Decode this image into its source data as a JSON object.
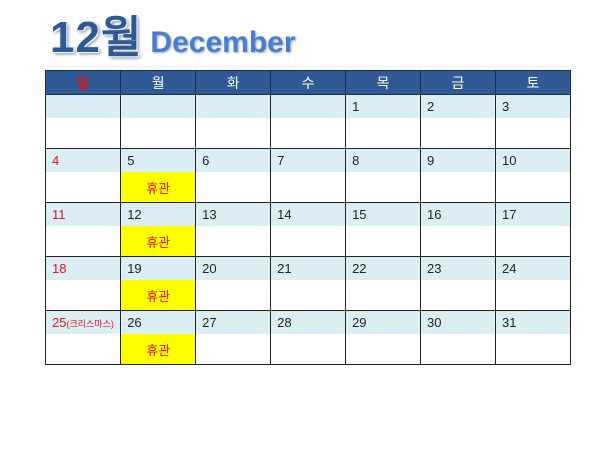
{
  "title": {
    "month": "12월",
    "english": "December"
  },
  "weekdays": [
    "일",
    "월",
    "화",
    "수",
    "목",
    "금",
    "토"
  ],
  "weeks": [
    [
      "",
      "",
      "",
      "",
      "1",
      "2",
      "3"
    ],
    [
      "4",
      "5",
      "6",
      "7",
      "8",
      "9",
      "10"
    ],
    [
      "11",
      "12",
      "13",
      "14",
      "15",
      "16",
      "17"
    ],
    [
      "18",
      "19",
      "20",
      "21",
      "22",
      "23",
      "24"
    ],
    [
      "25",
      "26",
      "27",
      "28",
      "29",
      "30",
      "31"
    ]
  ],
  "christmas_note": "(크리스마스)",
  "closed_label": "휴관",
  "colors": {
    "header": "#2f5a93",
    "sunday": "#e0141e",
    "date_band": "#dbeef4",
    "closed": "#ffff00"
  }
}
